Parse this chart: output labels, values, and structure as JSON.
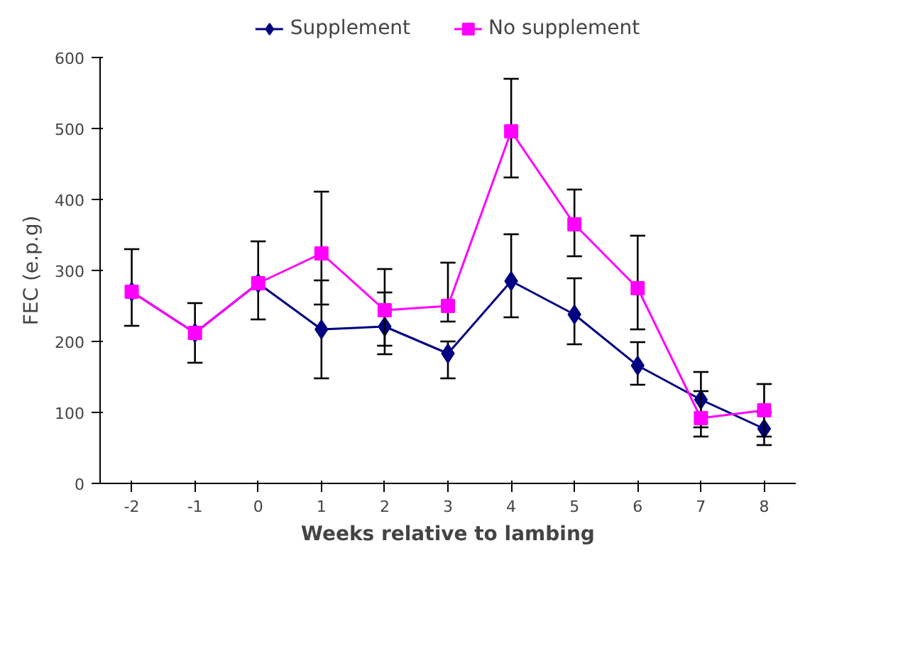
{
  "chart_data": {
    "type": "line",
    "xlabel": "Weeks relative to lambing",
    "ylabel": "FEC (e.p.g)",
    "categories": [
      "-2",
      "-1",
      "0",
      "1",
      "2",
      "3",
      "4",
      "5",
      "6",
      "7",
      "8"
    ],
    "ylim": [
      0,
      600
    ],
    "yticks": [
      0,
      100,
      200,
      300,
      400,
      500,
      600
    ],
    "grid": false,
    "legend": "top",
    "series": [
      {
        "name": "Supplement",
        "color": "#000080",
        "marker": "diamond",
        "values": [
          270,
          212,
          282,
          217,
          221,
          183,
          285,
          238,
          166,
          118,
          77
        ],
        "errors": [
          [
            222,
            330
          ],
          42,
          [
            231,
            341
          ],
          69,
          [
            194,
            269
          ],
          [
            148,
            200
          ],
          [
            234,
            351
          ],
          [
            196,
            289
          ],
          [
            139,
            199
          ],
          39,
          23
        ]
      },
      {
        "name": "No supplement",
        "color": "#ff00ff",
        "marker": "square",
        "values": [
          270,
          212,
          282,
          324,
          244,
          250,
          496,
          365,
          275,
          92,
          103
        ],
        "errors": [
          null,
          null,
          null,
          [
            252,
            411
          ],
          [
            182,
            302
          ],
          [
            228,
            311
          ],
          [
            431,
            570
          ],
          [
            320,
            414
          ],
          [
            217,
            349
          ],
          [
            66,
            130
          ],
          37
        ]
      }
    ]
  }
}
